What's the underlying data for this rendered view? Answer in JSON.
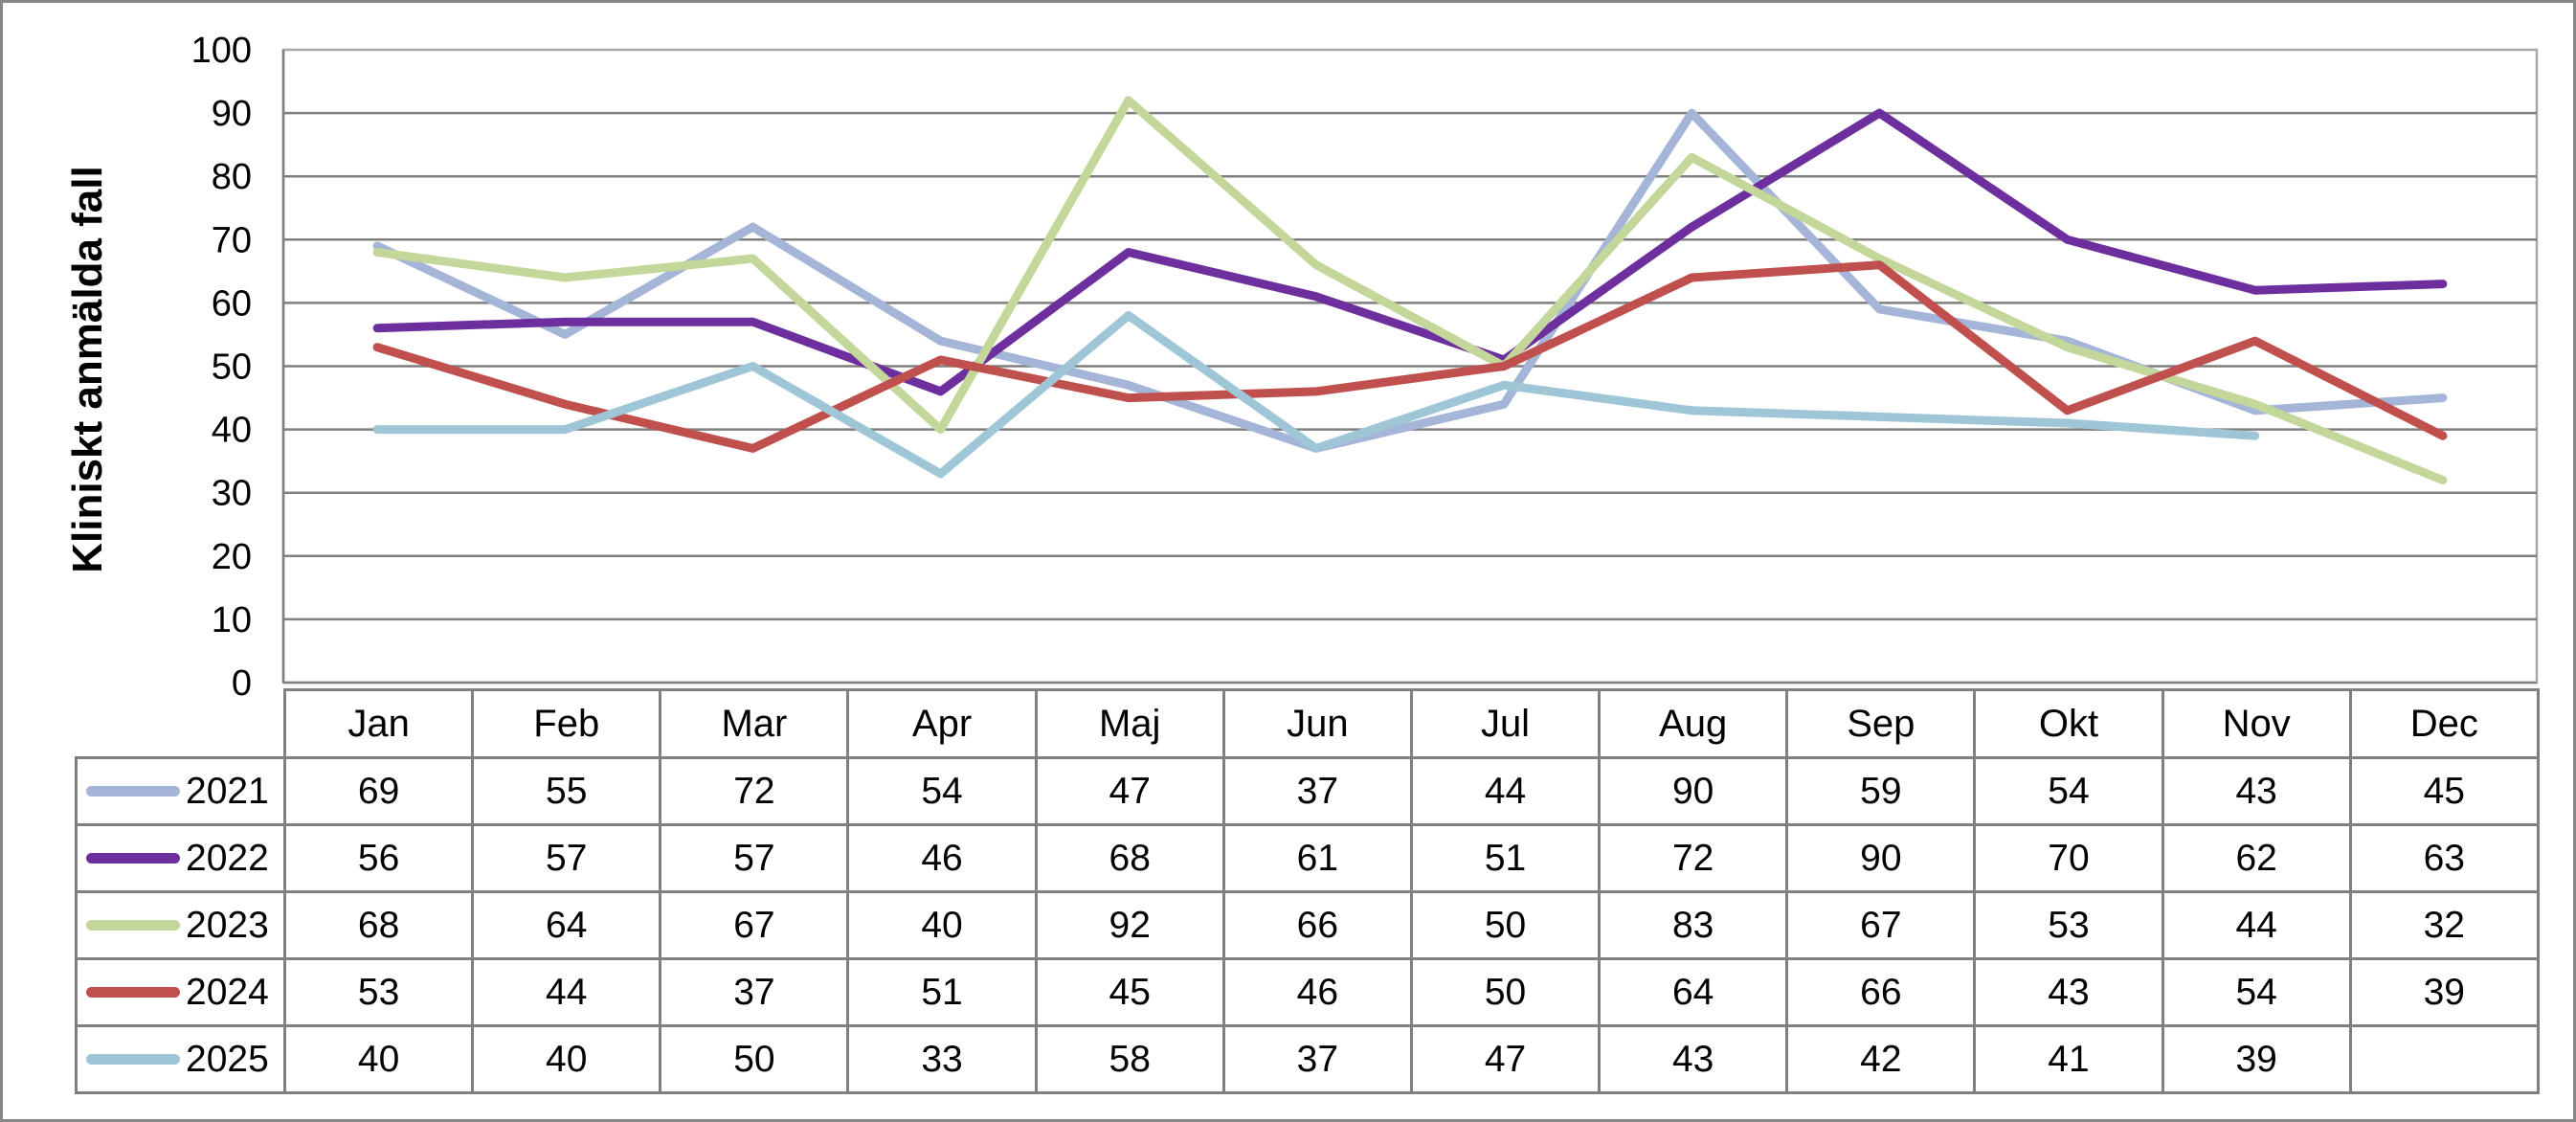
{
  "chart_data": {
    "type": "line",
    "title": "",
    "xlabel": "",
    "ylabel": "Kliniskt anmälda fall",
    "ylim": [
      0,
      100
    ],
    "ytick_step": 10,
    "yticks": [
      0,
      10,
      20,
      30,
      40,
      50,
      60,
      70,
      80,
      90,
      100
    ],
    "grid": true,
    "legend_position": "table-left",
    "categories": [
      "Jan",
      "Feb",
      "Mar",
      "Apr",
      "Maj",
      "Jun",
      "Jul",
      "Aug",
      "Sep",
      "Okt",
      "Nov",
      "Dec"
    ],
    "series": [
      {
        "name": "2021",
        "color": "#A5B5D7",
        "values": [
          69,
          55,
          72,
          54,
          47,
          37,
          44,
          90,
          59,
          54,
          43,
          45
        ]
      },
      {
        "name": "2022",
        "color": "#6E2F9E",
        "values": [
          56,
          57,
          57,
          46,
          68,
          61,
          51,
          72,
          90,
          70,
          62,
          63
        ]
      },
      {
        "name": "2023",
        "color": "#C4D79B",
        "values": [
          68,
          64,
          67,
          40,
          92,
          66,
          50,
          83,
          67,
          53,
          44,
          32
        ]
      },
      {
        "name": "2024",
        "color": "#C0504D",
        "values": [
          53,
          44,
          37,
          51,
          45,
          46,
          50,
          64,
          66,
          43,
          54,
          39
        ]
      },
      {
        "name": "2025",
        "color": "#9EC6D6",
        "values": [
          40,
          40,
          50,
          33,
          58,
          37,
          47,
          43,
          42,
          41,
          39,
          null
        ]
      }
    ]
  },
  "colors": {
    "gridline": "#7F7F7F",
    "plot_border": "#A8A8A8",
    "axis_line": "#7F7F7F",
    "table_border": "#808080",
    "frame_border": "#878787",
    "text": "#000000",
    "background": "#FFFFFF"
  },
  "table": {
    "corner_label": ""
  }
}
